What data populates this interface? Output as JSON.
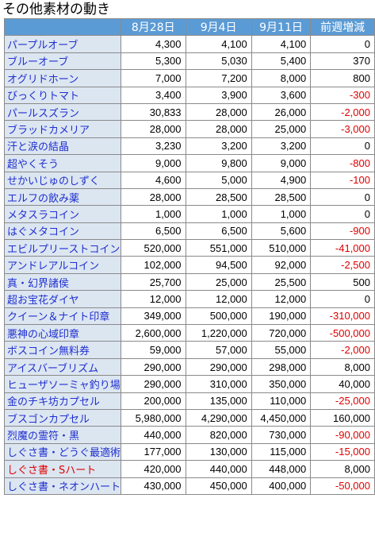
{
  "title": "その他素材の動き",
  "columns": [
    "",
    "8月28日",
    "9月4日",
    "9月11日",
    "前週増減"
  ],
  "rows": [
    {
      "name": "パープルオーブ",
      "v1": "4,300",
      "v2": "4,100",
      "v3": "4,100",
      "diff": "0"
    },
    {
      "name": "ブルーオーブ",
      "v1": "5,300",
      "v2": "5,030",
      "v3": "5,400",
      "diff": "370"
    },
    {
      "name": "オグリドホーン",
      "v1": "7,000",
      "v2": "7,200",
      "v3": "8,000",
      "diff": "800"
    },
    {
      "name": "びっくりトマト",
      "v1": "3,400",
      "v2": "3,900",
      "v3": "3,600",
      "diff": "-300"
    },
    {
      "name": "パールスズラン",
      "v1": "30,833",
      "v2": "28,000",
      "v3": "26,000",
      "diff": "-2,000"
    },
    {
      "name": "ブラッドカメリア",
      "v1": "28,000",
      "v2": "28,000",
      "v3": "25,000",
      "diff": "-3,000"
    },
    {
      "name": "汗と涙の結晶",
      "v1": "3,230",
      "v2": "3,200",
      "v3": "3,200",
      "diff": "0"
    },
    {
      "name": "超やくそう",
      "v1": "9,000",
      "v2": "9,800",
      "v3": "9,000",
      "diff": "-800"
    },
    {
      "name": "せかいじゅのしずく",
      "v1": "4,600",
      "v2": "5,000",
      "v3": "4,900",
      "diff": "-100"
    },
    {
      "name": "エルフの飲み薬",
      "v1": "28,000",
      "v2": "28,500",
      "v3": "28,500",
      "diff": "0"
    },
    {
      "name": "メタスラコイン",
      "v1": "1,000",
      "v2": "1,000",
      "v3": "1,000",
      "diff": "0"
    },
    {
      "name": "はぐメタコイン",
      "v1": "6,500",
      "v2": "6,500",
      "v3": "5,600",
      "diff": "-900"
    },
    {
      "name": "エビルプリーストコイン",
      "v1": "520,000",
      "v2": "551,000",
      "v3": "510,000",
      "diff": "-41,000"
    },
    {
      "name": "アンドレアルコイン",
      "v1": "102,000",
      "v2": "94,500",
      "v3": "92,000",
      "diff": "-2,500"
    },
    {
      "name": "真・幻界諸侯",
      "v1": "25,700",
      "v2": "25,000",
      "v3": "25,500",
      "diff": "500"
    },
    {
      "name": "超お宝花ダイヤ",
      "v1": "12,000",
      "v2": "12,000",
      "v3": "12,000",
      "diff": "0"
    },
    {
      "name": "クイーン＆ナイト印章",
      "v1": "349,000",
      "v2": "500,000",
      "v3": "190,000",
      "diff": "-310,000"
    },
    {
      "name": "悪神の心域印章",
      "v1": "2,600,000",
      "v2": "1,220,000",
      "v3": "720,000",
      "diff": "-500,000"
    },
    {
      "name": "ボスコイン無料券",
      "v1": "59,000",
      "v2": "57,000",
      "v3": "55,000",
      "diff": "-2,000"
    },
    {
      "name": "アイスバーブリズム",
      "v1": "290,000",
      "v2": "290,000",
      "v3": "298,000",
      "diff": "8,000"
    },
    {
      "name": "ヒューザソーミャ釣り場",
      "v1": "290,000",
      "v2": "310,000",
      "v3": "350,000",
      "diff": "40,000"
    },
    {
      "name": "金のチキ坊カプセル",
      "v1": "200,000",
      "v2": "135,000",
      "v3": "110,000",
      "diff": "-25,000"
    },
    {
      "name": "ブスゴンカプセル",
      "v1": "5,980,000",
      "v2": "4,290,000",
      "v3": "4,450,000",
      "diff": "160,000"
    },
    {
      "name": "烈魔の霊符・黒",
      "v1": "440,000",
      "v2": "820,000",
      "v3": "730,000",
      "diff": "-90,000"
    },
    {
      "name": "しぐさ書・どうぐ最適術",
      "v1": "177,000",
      "v2": "130,000",
      "v3": "115,000",
      "diff": "-15,000"
    },
    {
      "name": "しぐさ書・Sハート",
      "v1": "420,000",
      "v2": "440,000",
      "v3": "448,000",
      "diff": "8,000",
      "highlight": true
    },
    {
      "name": "しぐさ書・ネオンハート",
      "v1": "430,000",
      "v2": "450,000",
      "v3": "400,000",
      "diff": "-50,000"
    }
  ]
}
